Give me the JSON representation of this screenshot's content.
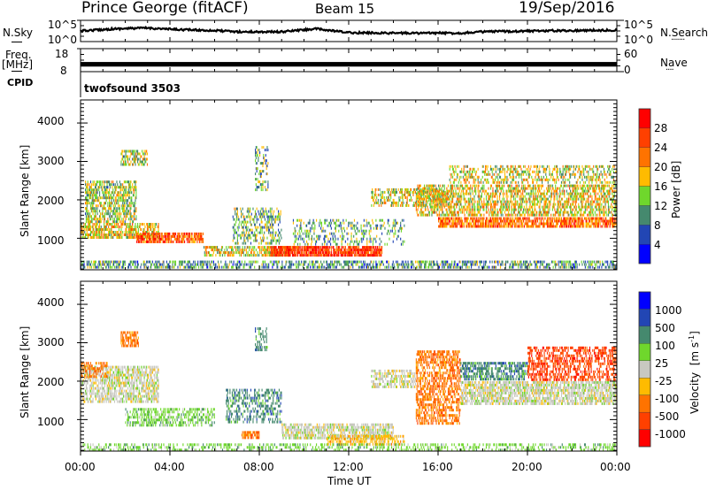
{
  "header": {
    "station": "Prince George (fitACF)",
    "beam": "Beam 15",
    "date": "19/Sep/2016"
  },
  "side_labels": {
    "nsky": "N.Sky",
    "freq_line1": "Freq.",
    "freq_line2": "[MHz]",
    "cpid": "CPID",
    "nsearch": "N.Search",
    "nsearch_dots": ".......",
    "nave": "Nave",
    "nave_dots": "...."
  },
  "cpid_text": "twofsound 3503",
  "chart_data": [
    {
      "type": "line",
      "name": "noise-panel",
      "left_axis": {
        "label": "N.Sky",
        "ticks": [
          "10^5",
          "10^0"
        ],
        "range_log10": [
          0,
          5
        ]
      },
      "right_axis": {
        "label": "N.Search",
        "ticks": [
          "10^5",
          "10^0"
        ],
        "range_log10": [
          0,
          5
        ]
      },
      "x_range_hours": [
        0,
        24
      ],
      "series_log10_level": [
        {
          "t": 0,
          "v": 2.5
        },
        {
          "t": 1.5,
          "v": 3.0
        },
        {
          "t": 3,
          "v": 3.2
        },
        {
          "t": 4,
          "v": 2.9
        },
        {
          "t": 6,
          "v": 2.6
        },
        {
          "t": 7,
          "v": 2.3
        },
        {
          "t": 9,
          "v": 2.3
        },
        {
          "t": 10.5,
          "v": 3.0
        },
        {
          "t": 12,
          "v": 2.1
        },
        {
          "t": 14,
          "v": 2.0
        },
        {
          "t": 17,
          "v": 2.0
        },
        {
          "t": 18,
          "v": 2.3
        },
        {
          "t": 20,
          "v": 2.5
        },
        {
          "t": 24,
          "v": 2.7
        }
      ]
    },
    {
      "type": "line",
      "name": "frequency-panel",
      "left_axis": {
        "label": "Freq. [MHz]",
        "ticks": [
          "18",
          "8"
        ],
        "range": [
          8,
          18
        ]
      },
      "right_axis": {
        "label": "Nave",
        "ticks": [
          "60",
          "0"
        ],
        "range": [
          0,
          60
        ]
      },
      "x_range_hours": [
        0,
        24
      ],
      "frequency_band_mhz": [
        10.2,
        12.2
      ]
    },
    {
      "type": "heatmap",
      "name": "power-panel",
      "ylabel": "Slant Range [km]",
      "ylim": [
        180,
        4600
      ],
      "yticks": [
        "4000",
        "3000",
        "2000",
        "1000"
      ],
      "ytick_values": [
        4000,
        3000,
        2000,
        1000
      ],
      "x_range_hours": [
        0,
        24
      ],
      "colorbar": {
        "label": "Power [dB]",
        "colors": [
          "#0000ff",
          "#2246b4",
          "#45896e",
          "#6fd72c",
          "#ffbb00",
          "#ff7300",
          "#ff4000",
          "#ff0000"
        ],
        "tick_labels": [
          "4",
          "8",
          "12",
          "16",
          "20",
          "24",
          "28"
        ]
      },
      "echo_regions": [
        {
          "t0": 0.2,
          "t1": 2.5,
          "r0": 1400,
          "r1": 2500,
          "level": 0.45,
          "density": 0.55
        },
        {
          "t0": 0.0,
          "t1": 3.5,
          "r0": 1000,
          "r1": 1400,
          "level": 0.55,
          "density": 0.6
        },
        {
          "t0": 2.5,
          "t1": 5.5,
          "r0": 850,
          "r1": 1150,
          "level": 0.8,
          "density": 0.7
        },
        {
          "t0": 1.8,
          "t1": 3.0,
          "r0": 2900,
          "r1": 3300,
          "level": 0.45,
          "density": 0.5
        },
        {
          "t0": 5.5,
          "t1": 9.5,
          "r0": 500,
          "r1": 800,
          "level": 0.55,
          "density": 0.5
        },
        {
          "t0": 8.5,
          "t1": 13.5,
          "r0": 520,
          "r1": 800,
          "level": 0.9,
          "density": 0.8
        },
        {
          "t0": 6.8,
          "t1": 9.0,
          "r0": 800,
          "r1": 1800,
          "level": 0.4,
          "density": 0.35
        },
        {
          "t0": 7.8,
          "t1": 8.4,
          "r0": 2200,
          "r1": 3400,
          "level": 0.35,
          "density": 0.3
        },
        {
          "t0": 9.5,
          "t1": 14.5,
          "r0": 800,
          "r1": 1500,
          "level": 0.35,
          "density": 0.25
        },
        {
          "t0": 13.0,
          "t1": 16.5,
          "r0": 1800,
          "r1": 2300,
          "level": 0.5,
          "density": 0.4
        },
        {
          "t0": 16.0,
          "t1": 24.0,
          "r0": 1300,
          "r1": 1550,
          "level": 0.75,
          "density": 0.7
        },
        {
          "t0": 15.0,
          "t1": 24.0,
          "r0": 1550,
          "r1": 2400,
          "level": 0.55,
          "density": 0.5
        },
        {
          "t0": 16.5,
          "t1": 24.0,
          "r0": 2400,
          "r1": 2900,
          "level": 0.5,
          "density": 0.35
        },
        {
          "t0": 0.0,
          "t1": 24.0,
          "r0": 180,
          "r1": 420,
          "level": 0.3,
          "density": 0.45
        }
      ]
    },
    {
      "type": "heatmap",
      "name": "velocity-panel",
      "ylabel": "Slant Range [km]",
      "ylim": [
        180,
        4600
      ],
      "yticks": [
        "4000",
        "3000",
        "2000",
        "1000"
      ],
      "ytick_values": [
        4000,
        3000,
        2000,
        1000
      ],
      "xlabel": "Time UT",
      "xticks": [
        "00:00",
        "04:00",
        "08:00",
        "12:00",
        "16:00",
        "20:00",
        "00:00"
      ],
      "x_range_hours": [
        0,
        24
      ],
      "colorbar": {
        "label": "Velocity [m s-1]",
        "label_main": "Velocity",
        "label_unit": "[m s",
        "label_exp": "-1",
        "label_close": "]",
        "colors": [
          "#ff0000",
          "#ff4000",
          "#ff7300",
          "#ffbb00",
          "#c8c8c0",
          "#6fd72c",
          "#45896e",
          "#2246b4",
          "#0000ff"
        ],
        "tick_labels": [
          "-1000",
          "-500",
          "-100",
          "-25",
          "25",
          "100",
          "500",
          "1000"
        ]
      },
      "echo_regions": [
        {
          "t0": 0.0,
          "t1": 3.5,
          "r0": 1400,
          "r1": 2400,
          "cls": 4,
          "density": 0.55
        },
        {
          "t0": 0.0,
          "t1": 1.2,
          "r0": 2100,
          "r1": 2500,
          "cls": 2,
          "density": 0.5
        },
        {
          "t0": 1.8,
          "t1": 2.6,
          "r0": 2900,
          "r1": 3300,
          "cls": 2,
          "density": 0.6
        },
        {
          "t0": 2.0,
          "t1": 6.0,
          "r0": 800,
          "r1": 1300,
          "cls": 5,
          "density": 0.45
        },
        {
          "t0": 6.5,
          "t1": 9.0,
          "r0": 900,
          "r1": 1800,
          "cls": 6,
          "density": 0.35
        },
        {
          "t0": 7.8,
          "t1": 8.4,
          "r0": 2800,
          "r1": 3400,
          "cls": 6,
          "density": 0.3
        },
        {
          "t0": 7.2,
          "t1": 8.0,
          "r0": 500,
          "r1": 700,
          "cls": 2,
          "density": 0.7
        },
        {
          "t0": 9.0,
          "t1": 14.0,
          "r0": 500,
          "r1": 900,
          "cls": 4,
          "density": 0.6
        },
        {
          "t0": 11.0,
          "t1": 14.5,
          "r0": 300,
          "r1": 600,
          "cls": 3,
          "density": 0.5
        },
        {
          "t0": 13.0,
          "t1": 15.0,
          "r0": 1800,
          "r1": 2300,
          "cls": 4,
          "density": 0.5
        },
        {
          "t0": 15.0,
          "t1": 17.0,
          "r0": 900,
          "r1": 2800,
          "cls": 2,
          "density": 0.5
        },
        {
          "t0": 17.0,
          "t1": 24.0,
          "r0": 1400,
          "r1": 2000,
          "cls": 4,
          "density": 0.65
        },
        {
          "t0": 17.0,
          "t1": 20.0,
          "r0": 2000,
          "r1": 2500,
          "cls": 6,
          "density": 0.55
        },
        {
          "t0": 20.0,
          "t1": 24.0,
          "r0": 2000,
          "r1": 2900,
          "cls": 1,
          "density": 0.45
        },
        {
          "t0": 0.0,
          "t1": 24.0,
          "r0": 180,
          "r1": 380,
          "cls": 5,
          "density": 0.3
        }
      ]
    }
  ]
}
